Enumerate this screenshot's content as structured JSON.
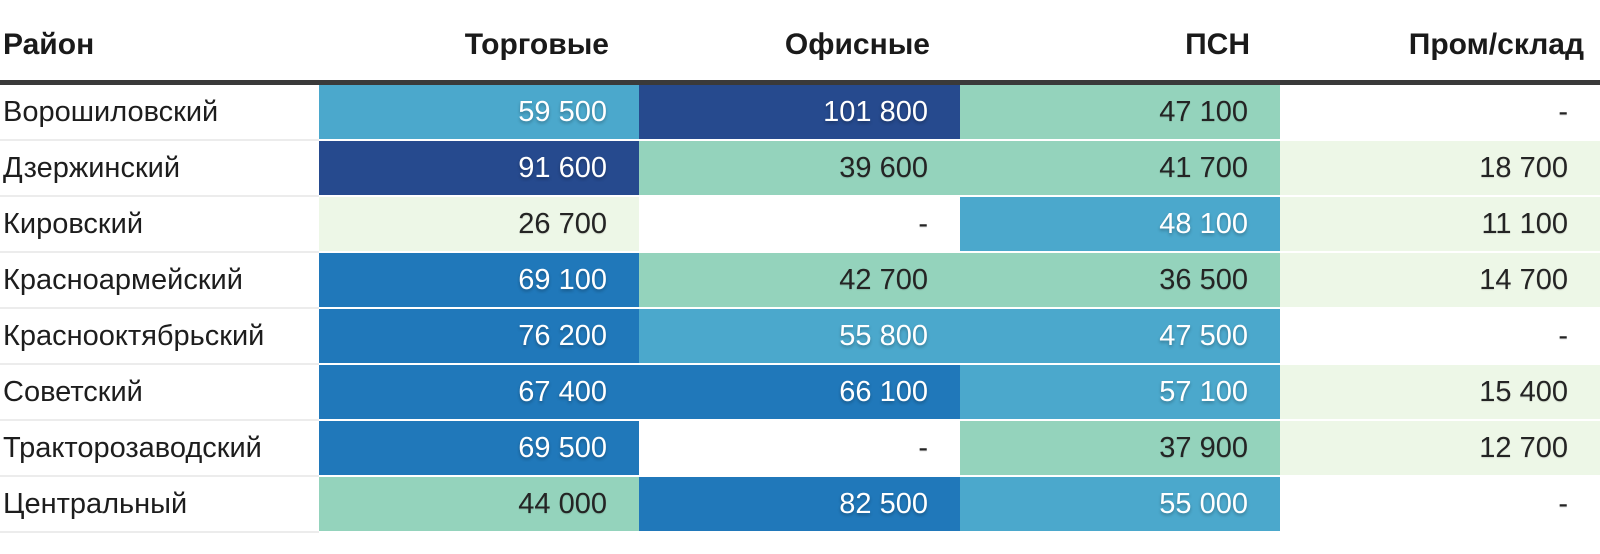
{
  "table": {
    "columns": [
      {
        "key": "district",
        "label": "Район"
      },
      {
        "key": "trade",
        "label": "Торговые"
      },
      {
        "key": "office",
        "label": "Офисные"
      },
      {
        "key": "psn",
        "label": "ПСН"
      },
      {
        "key": "industrial",
        "label": "Пром/склад"
      }
    ],
    "rows": [
      {
        "district": "Ворошиловский",
        "cells": [
          {
            "text": "59 500",
            "bin": "b3"
          },
          {
            "text": "101 800",
            "bin": "b5"
          },
          {
            "text": "47 100",
            "bin": "b2"
          },
          {
            "text": "-",
            "bin": "none"
          }
        ]
      },
      {
        "district": "Дзержинский",
        "cells": [
          {
            "text": "91 600",
            "bin": "b5"
          },
          {
            "text": "39 600",
            "bin": "b2"
          },
          {
            "text": "41 700",
            "bin": "b2"
          },
          {
            "text": "18 700",
            "bin": "b1"
          }
        ]
      },
      {
        "district": "Кировский",
        "cells": [
          {
            "text": "26 700",
            "bin": "b1"
          },
          {
            "text": "-",
            "bin": "none"
          },
          {
            "text": "48 100",
            "bin": "b3"
          },
          {
            "text": "11 100",
            "bin": "b1"
          }
        ]
      },
      {
        "district": "Красноармейский",
        "cells": [
          {
            "text": "69 100",
            "bin": "b4"
          },
          {
            "text": "42 700",
            "bin": "b2"
          },
          {
            "text": "36 500",
            "bin": "b2"
          },
          {
            "text": "14 700",
            "bin": "b1"
          }
        ]
      },
      {
        "district": "Краснооктябрьский",
        "cells": [
          {
            "text": "76 200",
            "bin": "b4"
          },
          {
            "text": "55 800",
            "bin": "b3"
          },
          {
            "text": "47 500",
            "bin": "b3"
          },
          {
            "text": "-",
            "bin": "none"
          }
        ]
      },
      {
        "district": "Советский",
        "cells": [
          {
            "text": "67 400",
            "bin": "b4"
          },
          {
            "text": "66 100",
            "bin": "b4"
          },
          {
            "text": "57 100",
            "bin": "b3"
          },
          {
            "text": "15 400",
            "bin": "b1"
          }
        ]
      },
      {
        "district": "Тракторозаводский",
        "cells": [
          {
            "text": "69 500",
            "bin": "b4"
          },
          {
            "text": "-",
            "bin": "none"
          },
          {
            "text": "37 900",
            "bin": "b2"
          },
          {
            "text": "12 700",
            "bin": "b1"
          }
        ]
      },
      {
        "district": "Центральный",
        "cells": [
          {
            "text": "44 000",
            "bin": "b2"
          },
          {
            "text": "82 500",
            "bin": "b4"
          },
          {
            "text": "55 000",
            "bin": "b3"
          },
          {
            "text": "-",
            "bin": "none"
          }
        ]
      }
    ]
  },
  "palette": {
    "bin1_lowest": "#edf7e7",
    "bin2_low": "#94d3bc",
    "bin3_mid": "#4ba8cc",
    "bin4_high": "#2078ba",
    "bin5_highest": "#264a8e",
    "missing_cell": "#ffffff",
    "header_rule": "#3a3a3a",
    "dark_text": "#242424",
    "light_text": "#ffffff"
  },
  "chart_data": {
    "type": "heatmap",
    "row_header_label": "Район",
    "rows": [
      "Ворошиловский",
      "Дзержинский",
      "Кировский",
      "Красноармейский",
      "Краснооктябрьский",
      "Советский",
      "Тракторозаводский",
      "Центральный"
    ],
    "columns": [
      "Торговые",
      "Офисные",
      "ПСН",
      "Пром/склад"
    ],
    "values": [
      [
        59500,
        101800,
        47100,
        null
      ],
      [
        91600,
        39600,
        41700,
        18700
      ],
      [
        26700,
        null,
        48100,
        11100
      ],
      [
        69100,
        42700,
        36500,
        14700
      ],
      [
        76200,
        55800,
        47500,
        null
      ],
      [
        67400,
        66100,
        57100,
        15400
      ],
      [
        69500,
        null,
        37900,
        12700
      ],
      [
        44000,
        82500,
        55000,
        null
      ]
    ],
    "missing_marker": "-",
    "color_binning": {
      "method": "equal-interval, 5 bins over global min..max",
      "min": 11100,
      "max": 101800,
      "bin_colors": [
        "#edf7e7",
        "#94d3bc",
        "#4ba8cc",
        "#2078ba",
        "#264a8e"
      ]
    },
    "legend": "none",
    "grid": "off"
  }
}
